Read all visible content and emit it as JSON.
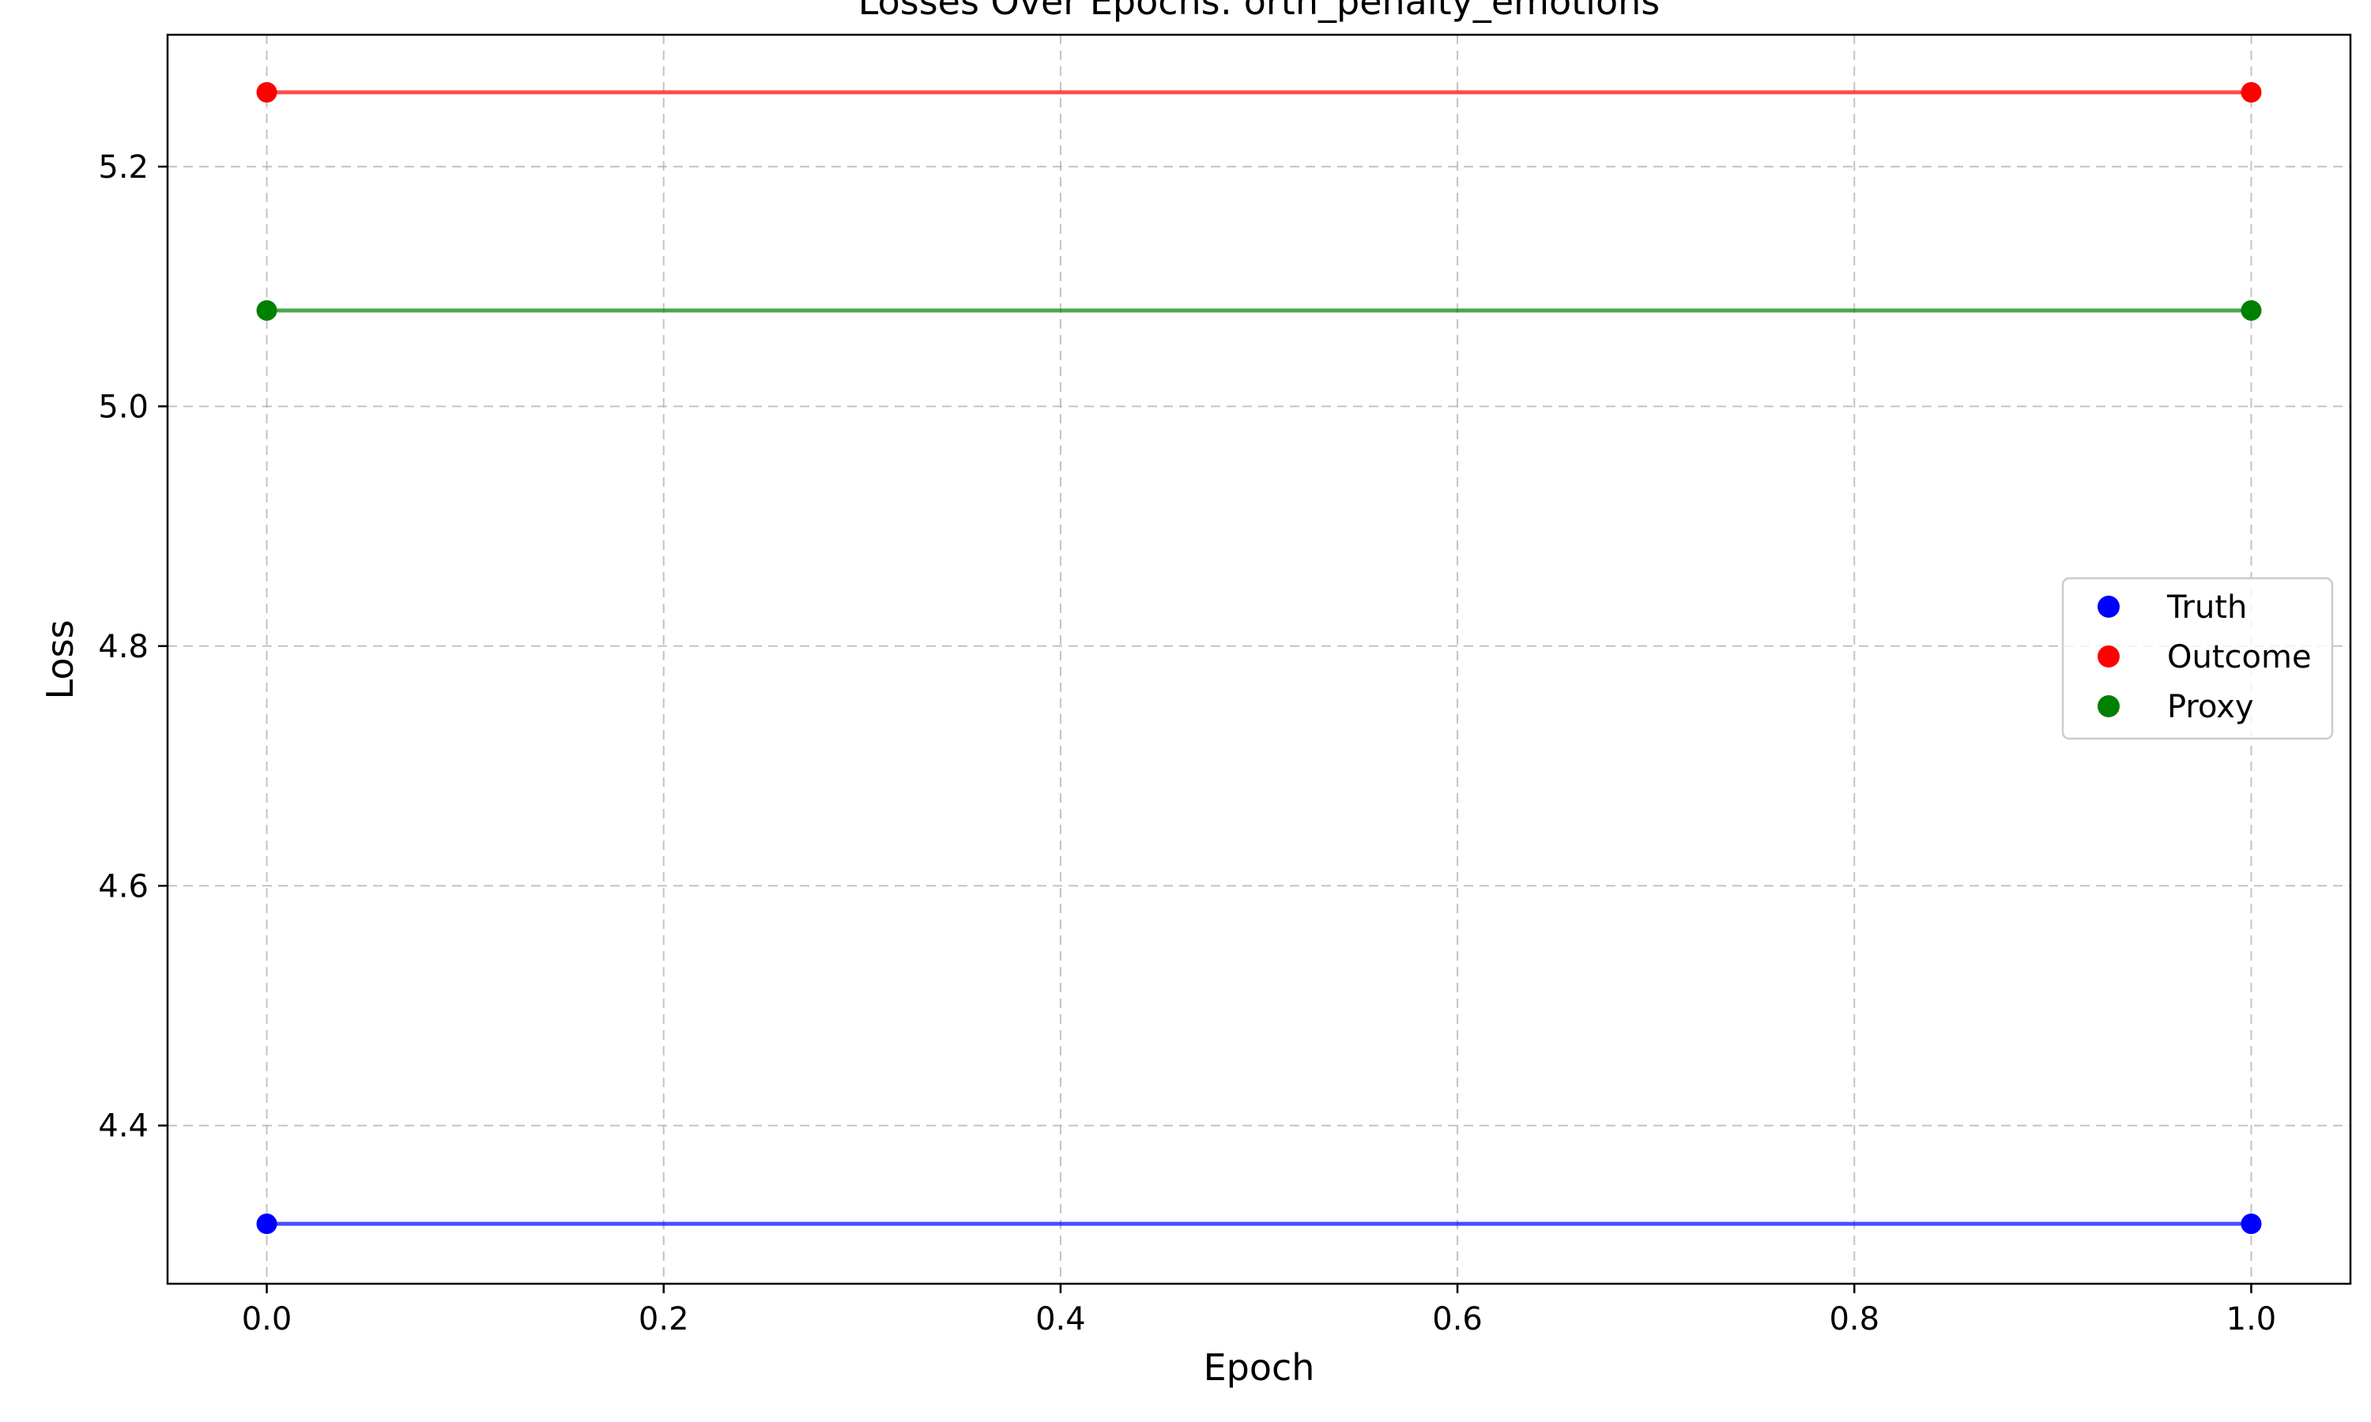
{
  "chart_data": {
    "type": "line",
    "title": "Losses Over Epochs: orth_penalty_emotions",
    "xlabel": "Epoch",
    "ylabel": "Loss",
    "x": [
      0.0,
      1.0
    ],
    "xlim": [
      -0.05,
      1.05
    ],
    "ylim": [
      4.268,
      5.31
    ],
    "xticks": [
      "0.0",
      "0.2",
      "0.4",
      "0.6",
      "0.8",
      "1.0"
    ],
    "yticks": [
      "4.4",
      "4.6",
      "4.8",
      "5.0",
      "5.2"
    ],
    "grid": true,
    "legend_position": "center-right",
    "series": [
      {
        "name": "Truth",
        "values": [
          4.318,
          4.318
        ],
        "color": "#0000ff"
      },
      {
        "name": "Outcome",
        "values": [
          5.262,
          5.262
        ],
        "color": "#ff0000"
      },
      {
        "name": "Proxy",
        "values": [
          5.08,
          5.08
        ],
        "color": "#008000"
      }
    ]
  }
}
